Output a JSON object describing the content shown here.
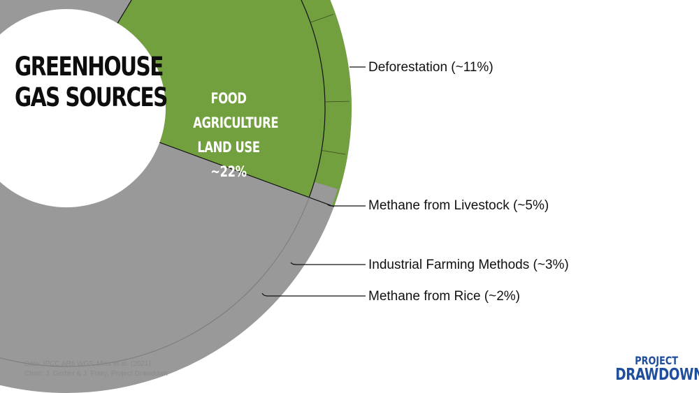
{
  "chart_data": {
    "type": "pie",
    "title_lines": [
      "GREENHOUSE",
      "GAS SOURCES"
    ],
    "inner_segment": {
      "label_lines": [
        "FOOD",
        "AGRICULTURE",
        "LAND USE",
        "~22%"
      ],
      "value": 22
    },
    "outer_ring": [
      {
        "name": "Deforestation (~11%)",
        "value": 11
      },
      {
        "name": "Methane from Livestock (~5%)",
        "value": 5
      },
      {
        "name": "Industrial Farming Methods (~3%)",
        "value": 3
      },
      {
        "name": "Methane from Rice (~2%)",
        "value": 2
      }
    ],
    "colors": {
      "food": "#72a03f",
      "other": "#999999",
      "center": "#ffffff",
      "line": "#111111"
    }
  },
  "source": {
    "line1": "Data: IPCC AR6 WG3; Minx et al. (2021)",
    "line2": "Chart: J. Gerber & J. Foley, Project Drawdown"
  },
  "logo": {
    "line1": "PROJECT",
    "line2": "DRAWDOWN",
    "mark": "."
  }
}
